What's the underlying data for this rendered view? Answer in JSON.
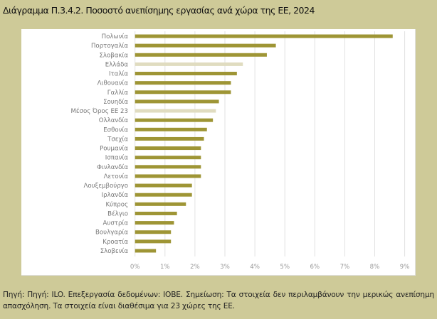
{
  "title": "Διάγραμμα Π.3.4.2. Ποσοστό ανεπίσημης εργασίας ανά χώρα της ΕΕ, 2024",
  "footer": "Πηγή: Πηγή: ILO. Επεξεργασία δεδομένων: ΙΟΒΕ. Σημείωση: Τα στοιχεία δεν περιλαμβάνουν την μερικώς ανεπίσημη απασχόληση. Τα στοιχεία είναι διαθέσιμα για 23 χώρες της ΕΕ.",
  "colors": {
    "background": "#CECA98",
    "bar": "#9E9535",
    "bar_highlight": "#E0DCC0",
    "grid": "#E2E2E2"
  },
  "chart_data": {
    "type": "bar",
    "orientation": "horizontal",
    "title": "Διάγραμμα Π.3.4.2. Ποσοστό ανεπίσημης εργασίας ανά χώρα της ΕΕ, 2024",
    "xlabel": "",
    "ylabel": "",
    "categories": [
      "Πολωνία",
      "Πορτογαλία",
      "Σλοβακία",
      "Ελλάδα",
      "Ιταλία",
      "Λιθουανία",
      "Γαλλία",
      "Σουηδία",
      "Μέσος Όρος ΕΕ 23",
      "Ολλανδία",
      "Εσθονία",
      "Τσεχία",
      "Ρουμανία",
      "Ισπανία",
      "Φινλανδία",
      "Λετονία",
      "Λουξεμβούργο",
      "Ιρλανδία",
      "Κύπρος",
      "Βέλγιο",
      "Αυστρία",
      "Βουλγαρία",
      "Κροατία",
      "Σλοβενία"
    ],
    "values": [
      8.6,
      4.7,
      4.4,
      3.6,
      3.4,
      3.2,
      3.2,
      2.8,
      2.7,
      2.6,
      2.4,
      2.3,
      2.2,
      2.2,
      2.2,
      2.2,
      1.9,
      1.9,
      1.7,
      1.4,
      1.3,
      1.2,
      1.2,
      0.7
    ],
    "highlighted": [
      "Ελλάδα",
      "Μέσος Όρος ΕΕ 23"
    ],
    "unit": "%",
    "xlim": [
      0,
      9
    ],
    "xticks": [
      0,
      1,
      2,
      3,
      4,
      5,
      6,
      7,
      8,
      9
    ],
    "xtick_labels": [
      "0%",
      "1%",
      "2%",
      "3%",
      "4%",
      "5%",
      "6%",
      "7%",
      "8%",
      "9%"
    ],
    "grid": true,
    "legend": "none"
  }
}
